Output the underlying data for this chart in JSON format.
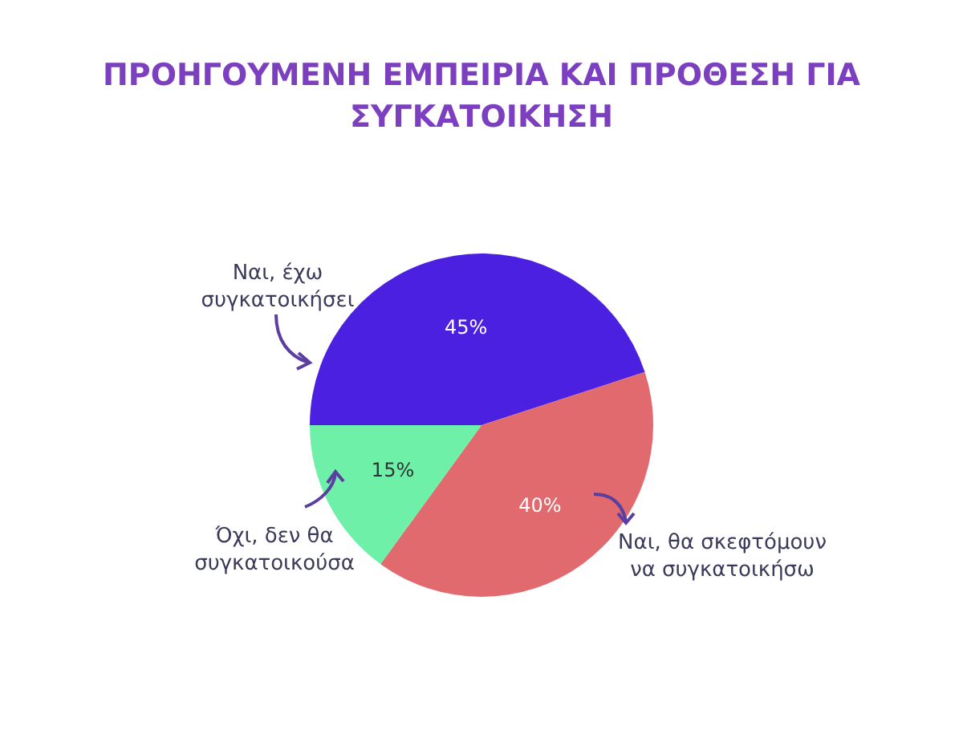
{
  "chart_data": {
    "type": "pie",
    "title": "ΠΡΟΗΓΟΥΜΕΝΗ ΕΜΠΕΙΡΙΑ ΚΑΙ ΠΡΟΘΕΣΗ ΓΙΑ\nΣΥΓΚΑΤΟΙΚΗΣΗ",
    "categories": [
      "Ναι, έχω\nσυγκατοικήσει",
      "Ναι, θα σκεφτόμουν\nνα συγκατοικήσω",
      "Όχι, δεν θα\nσυγκατοικούσα"
    ],
    "values": [
      45,
      40,
      15
    ],
    "value_labels": [
      "45%",
      "40%",
      "15%"
    ],
    "colors": [
      "#4b20e0",
      "#e06a6e",
      "#6ef0a8"
    ]
  }
}
